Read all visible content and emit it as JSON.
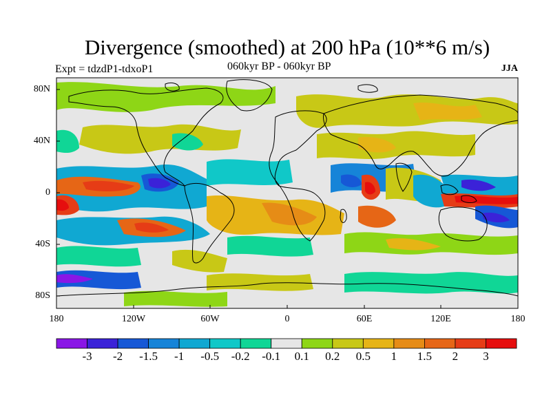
{
  "title": "Divergence (smoothed) at 200 hPa (10**6 m/s)",
  "subtitle_left": "Expt = tdzdP1-tdxoP1",
  "subtitle_center": "060kyr BP - 060kyr BP",
  "subtitle_right": "JJA",
  "colors": {
    "background_land": "#e6e6e6",
    "coast": "#000000",
    "palette": [
      "#8a16e6",
      "#3b22d8",
      "#1658d6",
      "#1684d8",
      "#10a8d2",
      "#10c8c8",
      "#10d696",
      "#e6e6e6",
      "#8ed616",
      "#c8c816",
      "#e6b416",
      "#e68c16",
      "#e66616",
      "#e63c16",
      "#e60e0e"
    ]
  },
  "map": {
    "x_ticks": [
      "180",
      "120W",
      "60W",
      "0",
      "60E",
      "120E",
      "180"
    ],
    "y_ticks": [
      "80N",
      "40N",
      "0",
      "40S",
      "80S"
    ]
  },
  "colorbar": {
    "labels": [
      "-3",
      "-2",
      "-1.5",
      "-1",
      "-0.5",
      "-0.2",
      "-0.1",
      "0.1",
      "0.2",
      "0.5",
      "1",
      "1.5",
      "2",
      "3"
    ]
  }
}
